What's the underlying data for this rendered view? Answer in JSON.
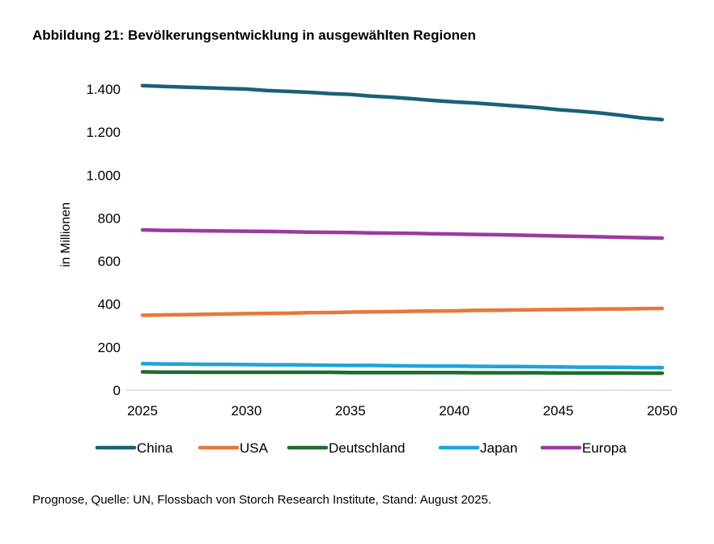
{
  "title": "Abbildung 21: Bevölkerungsentwicklung in ausgewählten Regionen",
  "source": "Prognose, Quelle: UN, Flossbach von Storch Research Institute, Stand: August 2025.",
  "chart_data": {
    "type": "line",
    "title": "Abbildung 21: Bevölkerungsentwicklung in ausgewählten Regionen",
    "xlabel": "",
    "ylabel": "in Millionen",
    "xlim": [
      2025,
      2050
    ],
    "ylim": [
      0,
      1400
    ],
    "x_ticks": [
      2025,
      2030,
      2035,
      2040,
      2045,
      2050
    ],
    "x_tick_labels": [
      "2025",
      "2030",
      "2035",
      "2040",
      "2045",
      "2050"
    ],
    "y_ticks": [
      0,
      200,
      400,
      600,
      800,
      1000,
      1200,
      1400
    ],
    "y_tick_labels": [
      "0",
      "200",
      "400",
      "600",
      "800",
      "1.000",
      "1.200",
      "1.400"
    ],
    "grid": false,
    "legend_position": "bottom",
    "x": [
      2025,
      2026,
      2027,
      2028,
      2029,
      2030,
      2031,
      2032,
      2033,
      2034,
      2035,
      2036,
      2037,
      2038,
      2039,
      2040,
      2041,
      2042,
      2043,
      2044,
      2045,
      2046,
      2047,
      2048,
      2049,
      2050
    ],
    "series": [
      {
        "name": "China",
        "color": "#1a5f7a",
        "values": [
          1416,
          1412,
          1409,
          1406,
          1403,
          1400,
          1393,
          1389,
          1385,
          1379,
          1375,
          1367,
          1362,
          1355,
          1347,
          1340,
          1335,
          1328,
          1321,
          1314,
          1304,
          1297,
          1289,
          1278,
          1266,
          1258
        ]
      },
      {
        "name": "USA",
        "color": "#e8773a",
        "values": [
          348,
          350,
          351,
          353,
          354,
          356,
          357,
          358,
          360,
          361,
          363,
          364,
          365,
          367,
          368,
          369,
          371,
          372,
          373,
          374,
          375,
          376,
          377,
          378,
          379,
          380
        ]
      },
      {
        "name": "Deutschland",
        "color": "#1e6b2e",
        "values": [
          85,
          84,
          84,
          83,
          83,
          83,
          83,
          83,
          83,
          83,
          82,
          82,
          82,
          82,
          82,
          82,
          81,
          81,
          81,
          81,
          80,
          80,
          80,
          80,
          79,
          79
        ]
      },
      {
        "name": "Japan",
        "color": "#1ea4d8",
        "values": [
          123,
          122,
          121,
          120,
          120,
          119,
          118,
          118,
          117,
          116,
          115,
          115,
          114,
          113,
          112,
          112,
          111,
          110,
          110,
          109,
          108,
          107,
          107,
          106,
          105,
          105
        ]
      },
      {
        "name": "Europa",
        "color": "#9b3aa0",
        "values": [
          745,
          743,
          742,
          741,
          740,
          739,
          738,
          737,
          735,
          734,
          733,
          731,
          730,
          729,
          727,
          726,
          724,
          723,
          721,
          719,
          717,
          715,
          713,
          711,
          709,
          707
        ]
      }
    ]
  }
}
